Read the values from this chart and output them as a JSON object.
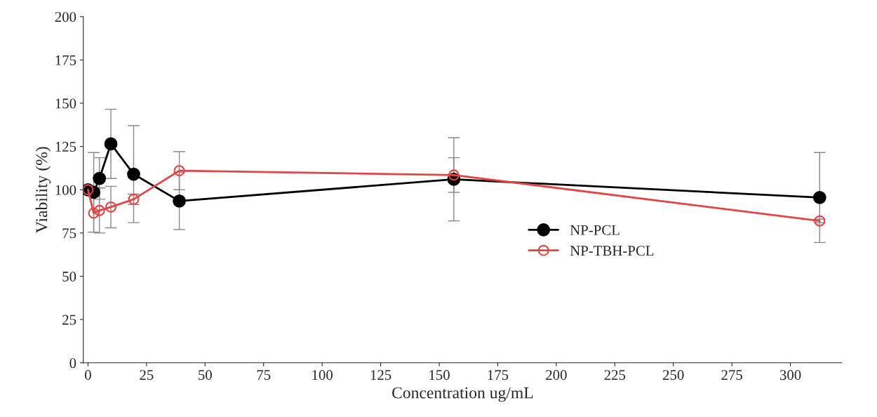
{
  "chart_data": {
    "type": "line",
    "xlabel": "Concentration ug/mL",
    "ylabel": "Viability (%)",
    "x": [
      0,
      2.44,
      4.88,
      9.77,
      19.5,
      39,
      156.25,
      312.5
    ],
    "series": [
      {
        "name": "NP-PCL",
        "color": "#000000",
        "marker": "circle",
        "values": [
          100,
          98.5,
          106.5,
          126.5,
          109,
          93.5,
          106,
          95.5
        ],
        "errors": [
          null,
          23,
          12,
          20,
          28,
          16.5,
          24,
          26
        ]
      },
      {
        "name": "NP-TBH-PCL",
        "color": "#e04646",
        "marker": "circle_open",
        "values": [
          100,
          86.5,
          88,
          90,
          94.5,
          111,
          108.5,
          82
        ],
        "errors": [
          null,
          11,
          13,
          12,
          3,
          11,
          10,
          1
        ]
      }
    ],
    "xlim": [
      -2,
      322
    ],
    "ylim": [
      0,
      200
    ],
    "xticks": [
      0,
      25,
      50,
      75,
      100,
      125,
      150,
      175,
      200,
      225,
      250,
      275,
      300
    ],
    "yticks": [
      0,
      25,
      50,
      75,
      100,
      125,
      150,
      175,
      200
    ],
    "grid": false,
    "legend": "center"
  }
}
